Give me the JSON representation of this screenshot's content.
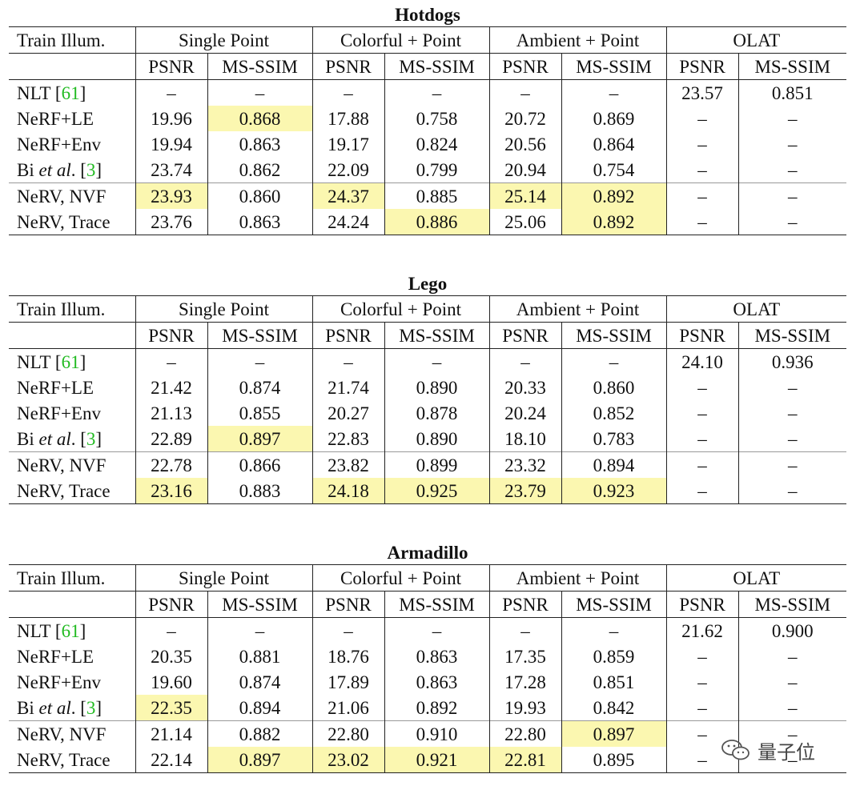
{
  "header": {
    "train_label": "Train Illum.",
    "groups": [
      "Single Point",
      "Colorful + Point",
      "Ambient + Point",
      "OLAT"
    ],
    "metrics": [
      "PSNR",
      "MS-SSIM",
      "PSNR",
      "MS-SSIM",
      "PSNR",
      "MS-SSIM",
      "PSNR",
      "MS-SSIM"
    ]
  },
  "rows": {
    "nlt": {
      "prefix": "NLT [",
      "cite": "61",
      "suffix": "]"
    },
    "nerf_le": "NeRF+LE",
    "nerf_env": "NeRF+Env",
    "bi": {
      "prefix": "Bi ",
      "italic": "et al",
      "mid": ". [",
      "cite": "3",
      "suffix": "]"
    },
    "nerv_nvf": "NeRV, NVF",
    "nerv_trace": "NeRV, Trace"
  },
  "dash": "–",
  "tables": [
    {
      "title": "Hotdogs",
      "values": [
        [
          "–",
          "–",
          "–",
          "–",
          "–",
          "–",
          "23.57",
          "0.851"
        ],
        [
          "19.96",
          "0.868",
          "17.88",
          "0.758",
          "20.72",
          "0.869",
          "–",
          "–"
        ],
        [
          "19.94",
          "0.863",
          "19.17",
          "0.824",
          "20.56",
          "0.864",
          "–",
          "–"
        ],
        [
          "23.74",
          "0.862",
          "22.09",
          "0.799",
          "20.94",
          "0.754",
          "–",
          "–"
        ],
        [
          "23.93",
          "0.860",
          "24.37",
          "0.885",
          "25.14",
          "0.892",
          "–",
          "–"
        ],
        [
          "23.76",
          "0.863",
          "24.24",
          "0.886",
          "25.06",
          "0.892",
          "–",
          "–"
        ]
      ],
      "highlight": [
        [
          1,
          1
        ],
        [
          4,
          0
        ],
        [
          4,
          2
        ],
        [
          4,
          4
        ],
        [
          4,
          5
        ],
        [
          5,
          3
        ],
        [
          5,
          5
        ]
      ]
    },
    {
      "title": "Lego",
      "values": [
        [
          "–",
          "–",
          "–",
          "–",
          "–",
          "–",
          "24.10",
          "0.936"
        ],
        [
          "21.42",
          "0.874",
          "21.74",
          "0.890",
          "20.33",
          "0.860",
          "–",
          "–"
        ],
        [
          "21.13",
          "0.855",
          "20.27",
          "0.878",
          "20.24",
          "0.852",
          "–",
          "–"
        ],
        [
          "22.89",
          "0.897",
          "22.83",
          "0.890",
          "18.10",
          "0.783",
          "–",
          "–"
        ],
        [
          "22.78",
          "0.866",
          "23.82",
          "0.899",
          "23.32",
          "0.894",
          "–",
          "–"
        ],
        [
          "23.16",
          "0.883",
          "24.18",
          "0.925",
          "23.79",
          "0.923",
          "–",
          "–"
        ]
      ],
      "highlight": [
        [
          3,
          1
        ],
        [
          5,
          0
        ],
        [
          5,
          2
        ],
        [
          5,
          3
        ],
        [
          5,
          4
        ],
        [
          5,
          5
        ]
      ]
    },
    {
      "title": "Armadillo",
      "values": [
        [
          "–",
          "–",
          "–",
          "–",
          "–",
          "–",
          "21.62",
          "0.900"
        ],
        [
          "20.35",
          "0.881",
          "18.76",
          "0.863",
          "17.35",
          "0.859",
          "–",
          "–"
        ],
        [
          "19.60",
          "0.874",
          "17.89",
          "0.863",
          "17.28",
          "0.851",
          "–",
          "–"
        ],
        [
          "22.35",
          "0.894",
          "21.06",
          "0.892",
          "19.93",
          "0.842",
          "–",
          "–"
        ],
        [
          "21.14",
          "0.882",
          "22.80",
          "0.910",
          "22.80",
          "0.897",
          "–",
          "–"
        ],
        [
          "22.14",
          "0.897",
          "23.02",
          "0.921",
          "22.81",
          "0.895",
          "–",
          "–"
        ]
      ],
      "highlight": [
        [
          3,
          0
        ],
        [
          4,
          5
        ],
        [
          5,
          1
        ],
        [
          5,
          2
        ],
        [
          5,
          3
        ],
        [
          5,
          4
        ]
      ]
    }
  ],
  "watermark": {
    "text": "量子位",
    "icon": "wechat-icon"
  },
  "colors": {
    "highlight": "#fbf7b0",
    "citation": "#22bb22"
  }
}
